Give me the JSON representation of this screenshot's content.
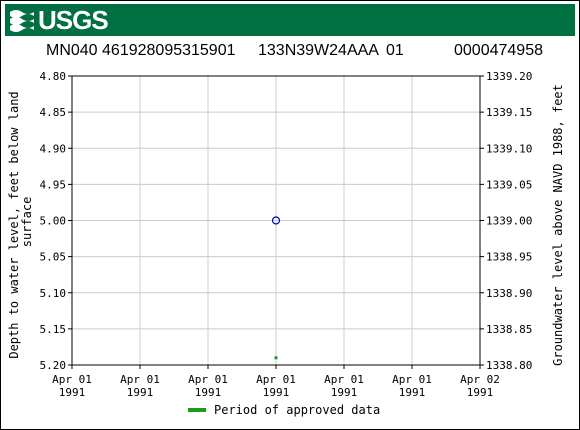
{
  "header": {
    "agency_logo_text": "USGS",
    "site_id": "MN040 461928095315901",
    "site_name": "133N39W24AAA",
    "site_suffix": "01",
    "station_number": "0000474958"
  },
  "colors": {
    "banner": "#006f41",
    "point_marker": "#0000cc",
    "approved": "#1a9e1a",
    "grid": "#cccccc"
  },
  "chart_data": {
    "type": "scatter",
    "title": "",
    "xlabel": "",
    "ylabel_left": "Depth to water level, feet below land surface",
    "ylabel_left_lines": [
      "Depth to water level, feet below land",
      "surface"
    ],
    "ylabel_right": "Groundwater level above NAVD 1988, feet",
    "y_left_range": [
      4.8,
      5.2
    ],
    "y_left_inverted": true,
    "y_left_ticks": [
      "4.80",
      "4.85",
      "4.90",
      "4.95",
      "5.00",
      "5.05",
      "5.10",
      "5.15",
      "5.20"
    ],
    "y_right_range": [
      1339.2,
      1338.8
    ],
    "y_right_ticks": [
      "1339.20",
      "1339.15",
      "1339.10",
      "1339.05",
      "1339.00",
      "1338.95",
      "1338.90",
      "1338.85",
      "1338.80"
    ],
    "x_ticks": [
      {
        "top": "Apr 01",
        "bottom": "1991"
      },
      {
        "top": "Apr 01",
        "bottom": "1991"
      },
      {
        "top": "Apr 01",
        "bottom": "1991"
      },
      {
        "top": "Apr 01",
        "bottom": "1991"
      },
      {
        "top": "Apr 01",
        "bottom": "1991"
      },
      {
        "top": "Apr 01",
        "bottom": "1991"
      },
      {
        "top": "Apr 02",
        "bottom": "1991"
      }
    ],
    "x_range_hours": [
      0,
      24
    ],
    "grid": true,
    "series": [
      {
        "kind": "measurement",
        "marker": "open-circle",
        "points": [
          {
            "x_hour": 12,
            "y": 5.0
          }
        ]
      },
      {
        "kind": "approved-period",
        "marker": "square",
        "points": [
          {
            "x_hour": 12,
            "y": 5.19
          }
        ]
      }
    ],
    "legend": {
      "position": "bottom-center",
      "entries": [
        {
          "label": "Period of approved data",
          "color": "#1a9e1a"
        }
      ]
    }
  }
}
